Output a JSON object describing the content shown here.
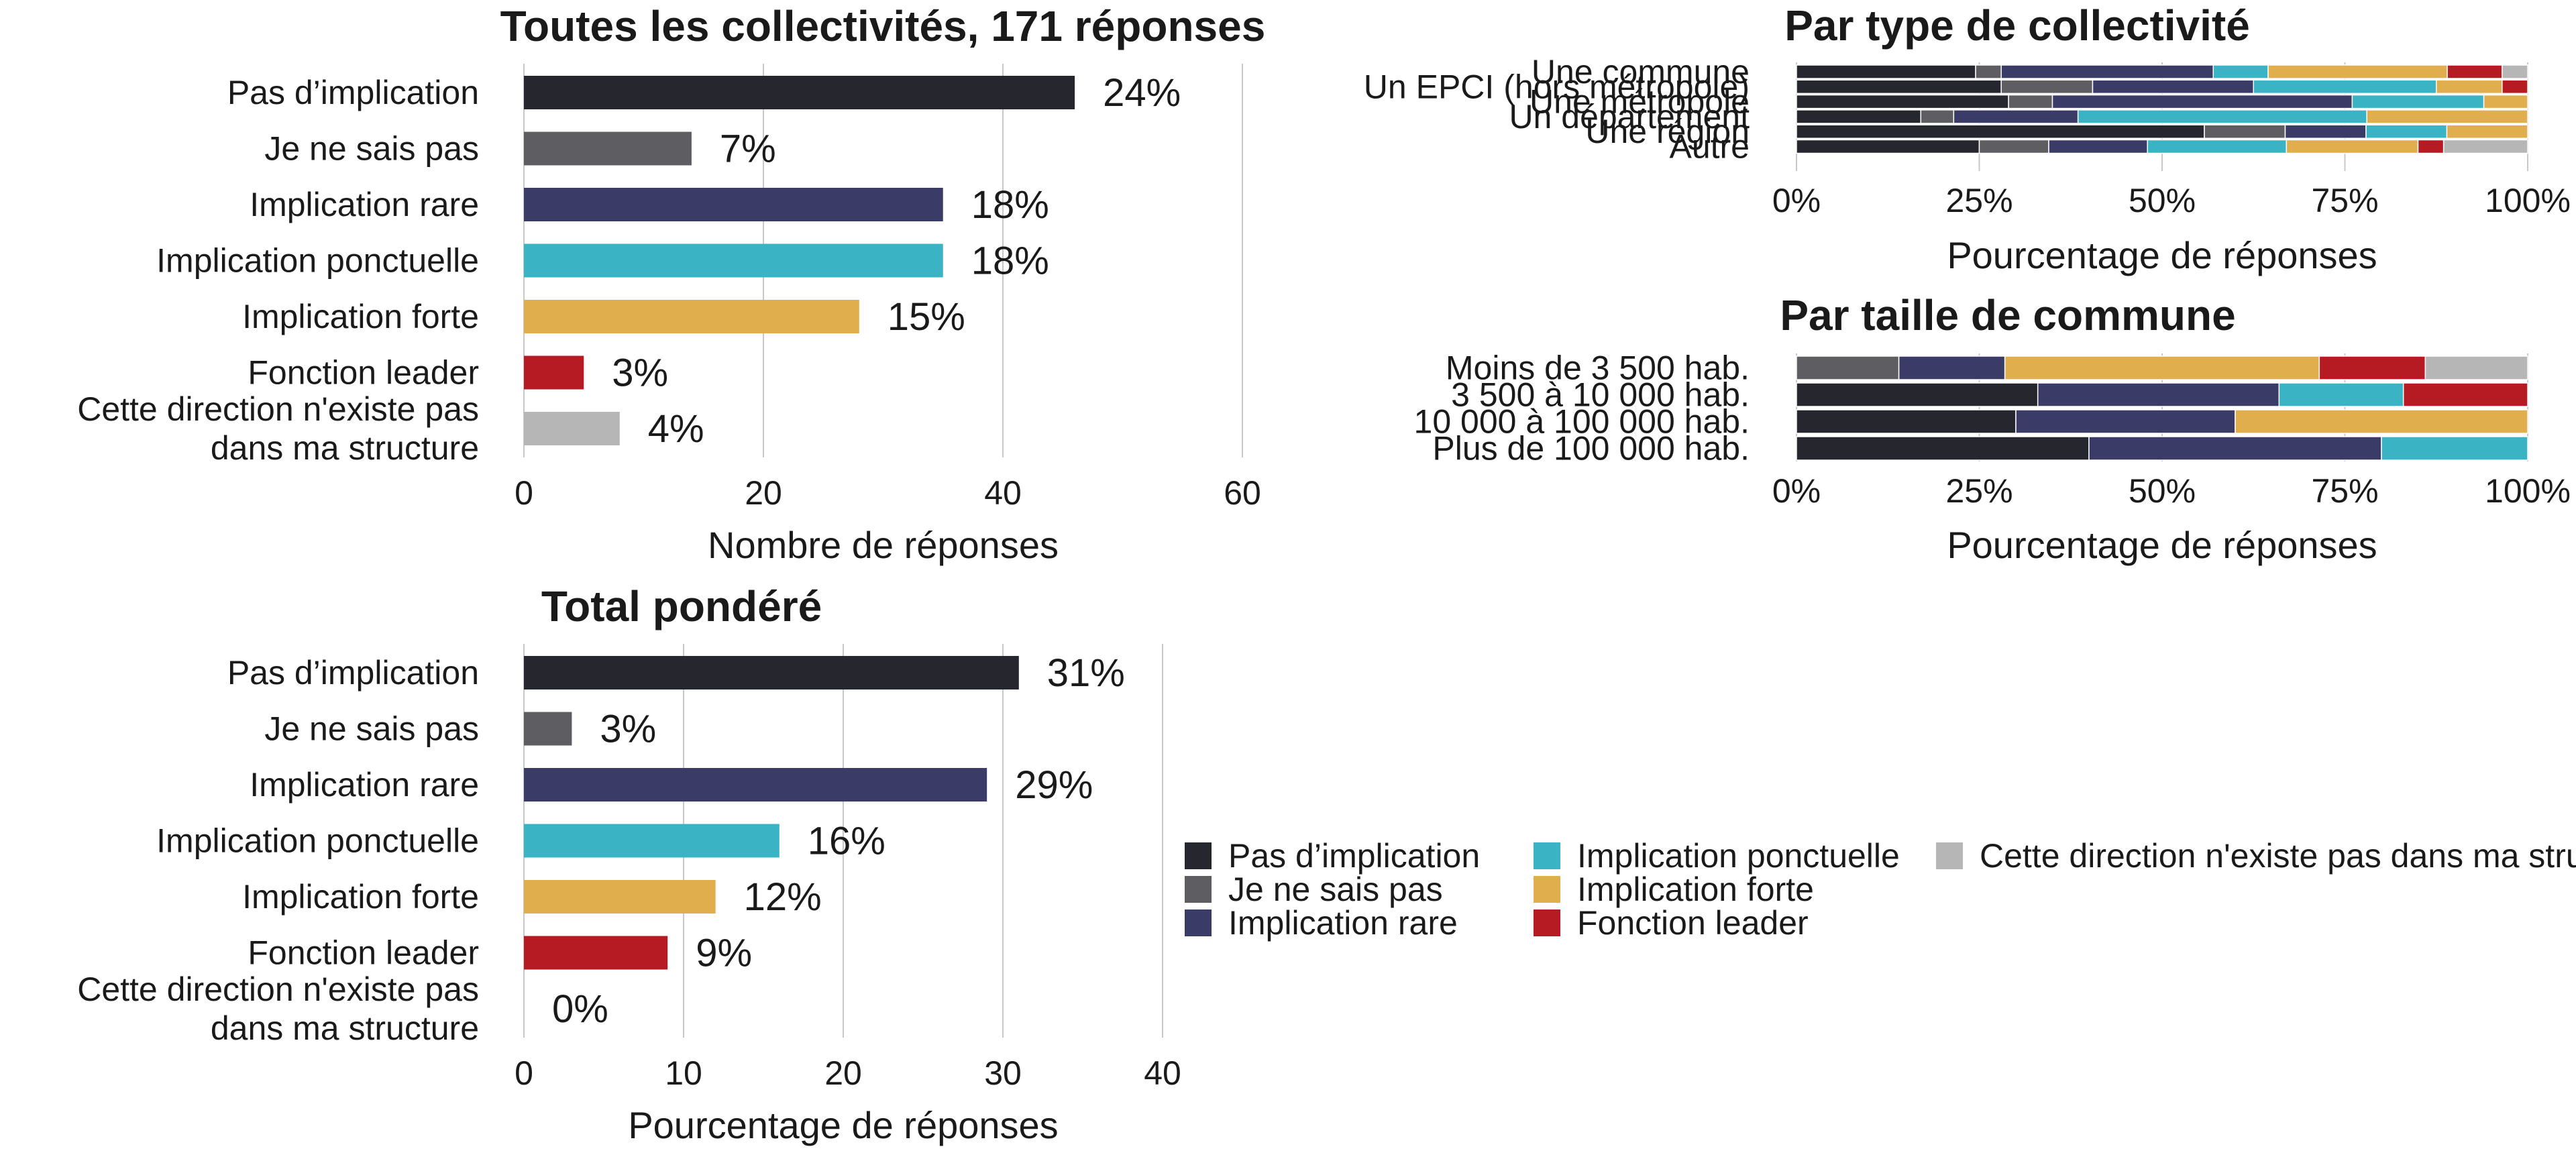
{
  "colors": {
    "Pas d’implication": "#26262e",
    "Je ne sais pas": "#5e5e62",
    "Implication rare": "#3b3b68",
    "Implication ponctuelle": "#3ab4c4",
    "Implication forte": "#e1ae4d",
    "Fonction leader": "#b61a22",
    "Cette direction n'existe pas dans ma structure": "#b6b6b6"
  },
  "chart_data": [
    {
      "id": "toutes",
      "type": "bar",
      "orientation": "horizontal",
      "title": "Toutes les collectivités, 171 réponses",
      "xlabel": "Nombre de réponses",
      "xlim": [
        0,
        60
      ],
      "xticks": [
        0,
        20,
        40,
        60
      ],
      "grid": true,
      "categories": [
        "Pas d’implication",
        "Je ne sais pas",
        "Implication rare",
        "Implication ponctuelle",
        "Implication forte",
        "Fonction leader",
        "Cette direction n'existe pas dans ma structure"
      ],
      "category_lines": [
        [
          "Pas d’implication"
        ],
        [
          "Je ne sais pas"
        ],
        [
          "Implication rare"
        ],
        [
          "Implication ponctuelle"
        ],
        [
          "Implication forte"
        ],
        [
          "Fonction leader"
        ],
        [
          "Cette direction n'existe pas",
          "dans ma structure"
        ]
      ],
      "values": [
        46,
        14,
        35,
        35,
        28,
        5,
        8
      ],
      "data_labels": [
        "24%",
        "7%",
        "18%",
        "18%",
        "15%",
        "3%",
        "4%"
      ]
    },
    {
      "id": "type",
      "type": "bar",
      "orientation": "horizontal",
      "stacked": "percent",
      "title": "Par type de collectivité",
      "xlabel": "Pourcentage de réponses",
      "xlim": [
        0,
        100
      ],
      "xticks": [
        "0%",
        "25%",
        "50%",
        "75%",
        "100%"
      ],
      "grid": true,
      "categories": [
        "Une commune",
        "Un EPCI (hors métropole)",
        "Une métropole",
        "Un département",
        "Une région",
        "Autre"
      ],
      "series": [
        {
          "name": "Pas d’implication",
          "values": [
            24.5,
            28,
            29,
            17,
            55.5,
            25
          ]
        },
        {
          "name": "Je ne sais pas",
          "values": [
            3.5,
            12.5,
            6,
            4.5,
            11,
            9.5
          ]
        },
        {
          "name": "Implication rare",
          "values": [
            29,
            22,
            41,
            17,
            11,
            13.5
          ]
        },
        {
          "name": "Implication ponctuelle",
          "values": [
            7.5,
            25,
            18,
            39.5,
            11,
            19
          ]
        },
        {
          "name": "Implication forte",
          "values": [
            24.5,
            9,
            6,
            22,
            11,
            18
          ]
        },
        {
          "name": "Fonction leader",
          "values": [
            7.5,
            3.5,
            0,
            0,
            0,
            3.5
          ]
        },
        {
          "name": "Cette direction n'existe pas dans ma structure",
          "values": [
            3.5,
            0,
            0,
            0,
            0,
            11.5
          ]
        }
      ]
    },
    {
      "id": "taille",
      "type": "bar",
      "orientation": "horizontal",
      "stacked": "percent",
      "title": "Par taille de commune",
      "xlabel": "Pourcentage de réponses",
      "xlim": [
        0,
        100
      ],
      "xticks": [
        "0%",
        "25%",
        "50%",
        "75%",
        "100%"
      ],
      "grid": true,
      "categories": [
        "Moins de 3 500 hab.",
        "3 500 à 10 000 hab.",
        "10 000 à 100 000 hab.",
        "Plus de 100 000 hab."
      ],
      "series": [
        {
          "name": "Pas d’implication",
          "values": [
            0,
            33,
            30,
            40
          ]
        },
        {
          "name": "Je ne sais pas",
          "values": [
            14,
            0,
            0,
            0
          ]
        },
        {
          "name": "Implication rare",
          "values": [
            14.5,
            33,
            30,
            40
          ]
        },
        {
          "name": "Implication ponctuelle",
          "values": [
            0,
            17,
            0,
            20
          ]
        },
        {
          "name": "Implication forte",
          "values": [
            43,
            0,
            40,
            0
          ]
        },
        {
          "name": "Fonction leader",
          "values": [
            14.5,
            17,
            0,
            0
          ]
        },
        {
          "name": "Cette direction n'existe pas dans ma structure",
          "values": [
            14,
            0,
            0,
            0
          ]
        }
      ]
    },
    {
      "id": "pondere",
      "type": "bar",
      "orientation": "horizontal",
      "title": "Total pondéré",
      "xlabel": "Pourcentage de réponses",
      "xlim": [
        0,
        40
      ],
      "xticks": [
        0,
        10,
        20,
        30,
        40
      ],
      "grid": true,
      "categories": [
        "Pas d’implication",
        "Je ne sais pas",
        "Implication rare",
        "Implication ponctuelle",
        "Implication forte",
        "Fonction leader",
        "Cette direction n'existe pas dans ma structure"
      ],
      "category_lines": [
        [
          "Pas d’implication"
        ],
        [
          "Je ne sais pas"
        ],
        [
          "Implication rare"
        ],
        [
          "Implication ponctuelle"
        ],
        [
          "Implication forte"
        ],
        [
          "Fonction leader"
        ],
        [
          "Cette direction n'existe pas",
          "dans ma structure"
        ]
      ],
      "values": [
        31,
        3,
        29,
        16,
        12,
        9,
        0
      ],
      "data_labels": [
        "31%",
        "3%",
        "29%",
        "16%",
        "12%",
        "9%",
        "0%"
      ]
    }
  ],
  "legend": {
    "items": [
      "Pas d’implication",
      "Je ne sais pas",
      "Implication rare",
      "Implication ponctuelle",
      "Implication forte",
      "Fonction leader",
      "Cette direction n'existe pas dans ma structure"
    ]
  }
}
